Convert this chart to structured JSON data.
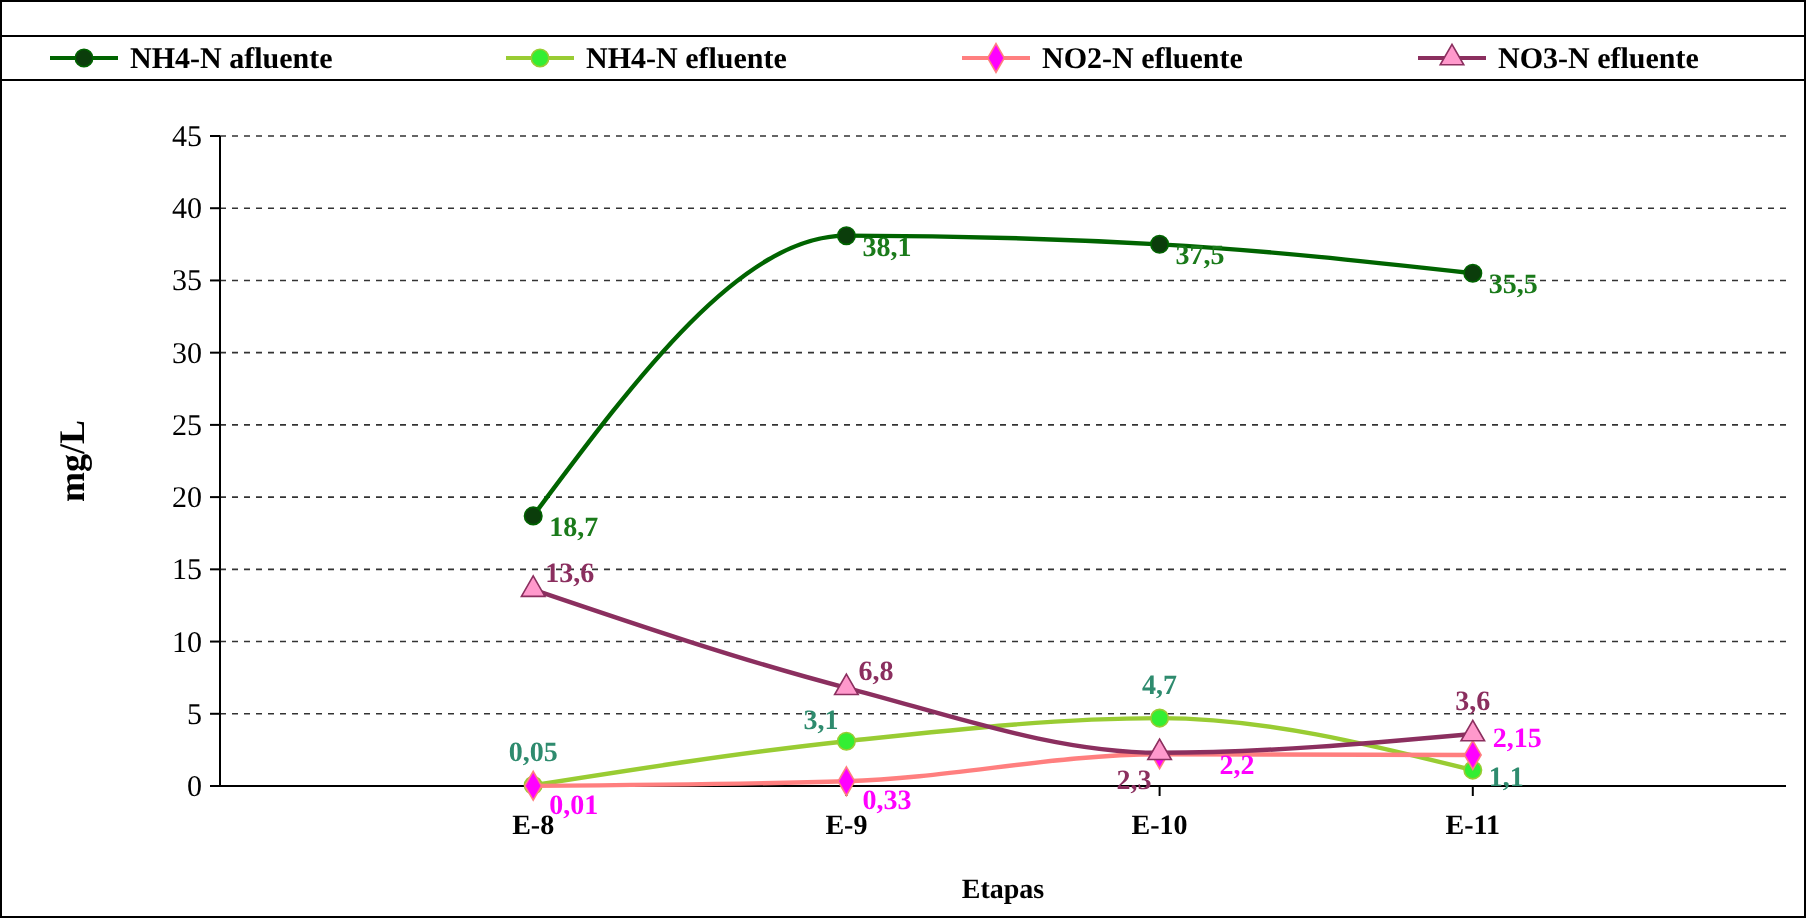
{
  "chart_data": {
    "type": "line",
    "xlabel": "Etapas",
    "ylabel": "mg/L",
    "categories": [
      "E-8",
      "E-9",
      "E-10",
      "E-11"
    ],
    "ylim": [
      0,
      45
    ],
    "yticks": [
      0,
      5,
      10,
      15,
      20,
      25,
      30,
      35,
      40,
      45
    ],
    "grid": "y",
    "legend": "top",
    "data_labels": true,
    "line_style": "solid",
    "series": [
      {
        "name": "NH4-N afluente",
        "color": "#006400",
        "marker": "circle",
        "values": [
          18.7,
          38.1,
          37.5,
          35.5
        ],
        "value_labels": [
          "18,7",
          "38,1",
          "37,5",
          "35,5"
        ]
      },
      {
        "name": "NH4-N efluente",
        "color": "#99cc33",
        "marker": "circle",
        "values": [
          0.05,
          3.1,
          4.7,
          1.1
        ],
        "value_labels": [
          "0,05",
          "3,1",
          "4,7",
          "1,1"
        ]
      },
      {
        "name": "NO2-N efluente",
        "color": "#ff7f7f",
        "marker": "diamond",
        "values": [
          0.01,
          0.33,
          2.2,
          2.15
        ],
        "value_labels": [
          "0,01",
          "0,33",
          "2,2",
          "2,15"
        ]
      },
      {
        "name": "NO3-N efluente",
        "color": "#8b2f5f",
        "marker": "triangle",
        "values": [
          13.6,
          6.8,
          2.3,
          3.6
        ],
        "value_labels": [
          "13,6",
          "6,8",
          "2,3",
          "3,6"
        ]
      }
    ]
  }
}
